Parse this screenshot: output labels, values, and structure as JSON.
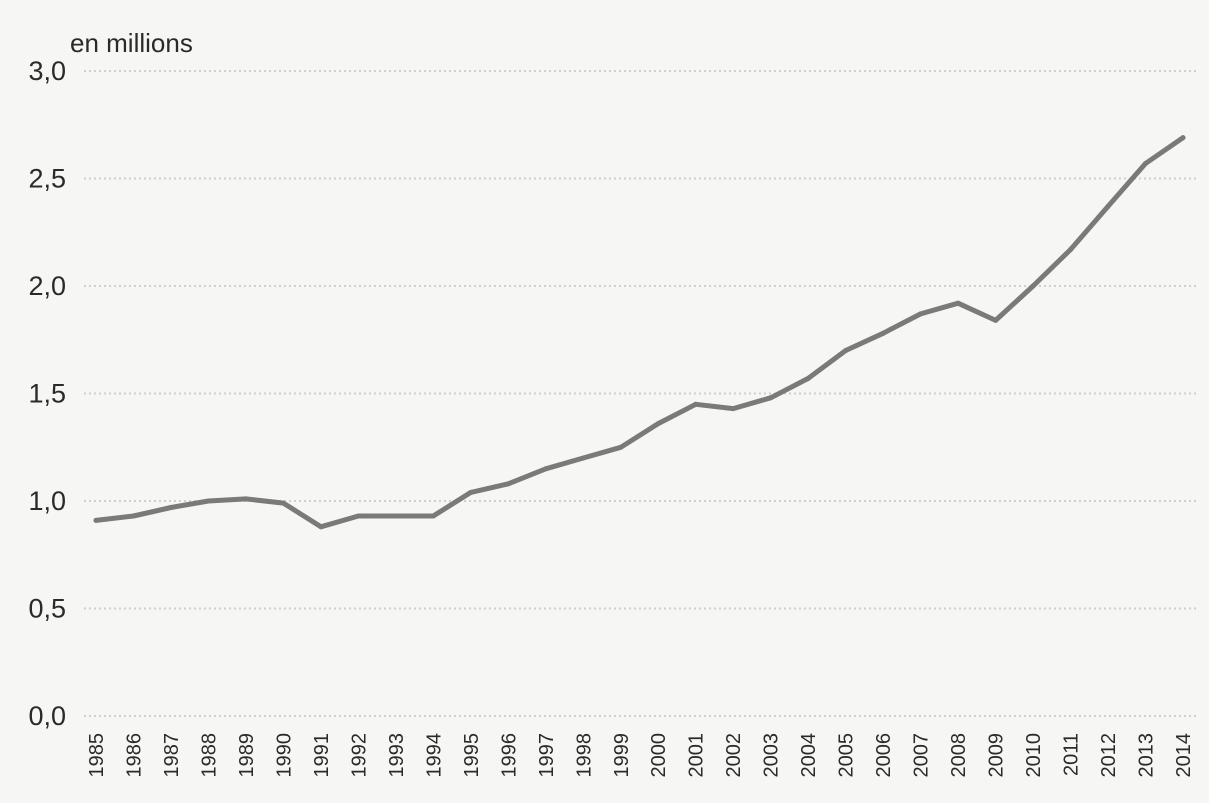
{
  "chart_data": {
    "type": "line",
    "unit_label": "en millions",
    "ylim": [
      0,
      3.0
    ],
    "yticks": [
      {
        "value": 0.0,
        "label": "0,0"
      },
      {
        "value": 0.5,
        "label": "0,5"
      },
      {
        "value": 1.0,
        "label": "1,0"
      },
      {
        "value": 1.5,
        "label": "1,5"
      },
      {
        "value": 2.0,
        "label": "2,0"
      },
      {
        "value": 2.5,
        "label": "2,5"
      },
      {
        "value": 3.0,
        "label": "3,0"
      }
    ],
    "grid": true,
    "categories": [
      "1985",
      "1986",
      "1987",
      "1988",
      "1989",
      "1990",
      "1991",
      "1992",
      "1993",
      "1994",
      "1995",
      "1996",
      "1997",
      "1998",
      "1999",
      "2000",
      "2001",
      "2002",
      "2003",
      "2004",
      "2005",
      "2006",
      "2007",
      "2008",
      "2009",
      "2010",
      "2011",
      "2012",
      "2013",
      "2014"
    ],
    "series": [
      {
        "values": [
          0.91,
          0.93,
          0.97,
          1.0,
          1.01,
          0.99,
          0.88,
          0.93,
          0.93,
          0.93,
          1.04,
          1.08,
          1.15,
          1.2,
          1.25,
          1.36,
          1.45,
          1.43,
          1.48,
          1.57,
          1.7,
          1.78,
          1.87,
          1.92,
          1.84,
          2.0,
          2.17,
          2.37,
          2.57,
          2.69
        ]
      }
    ],
    "colors": {
      "line": "#7a7a7a",
      "grid": "#cfcfcf",
      "text": "#2a2a2a",
      "background": "#f6f6f4"
    }
  }
}
